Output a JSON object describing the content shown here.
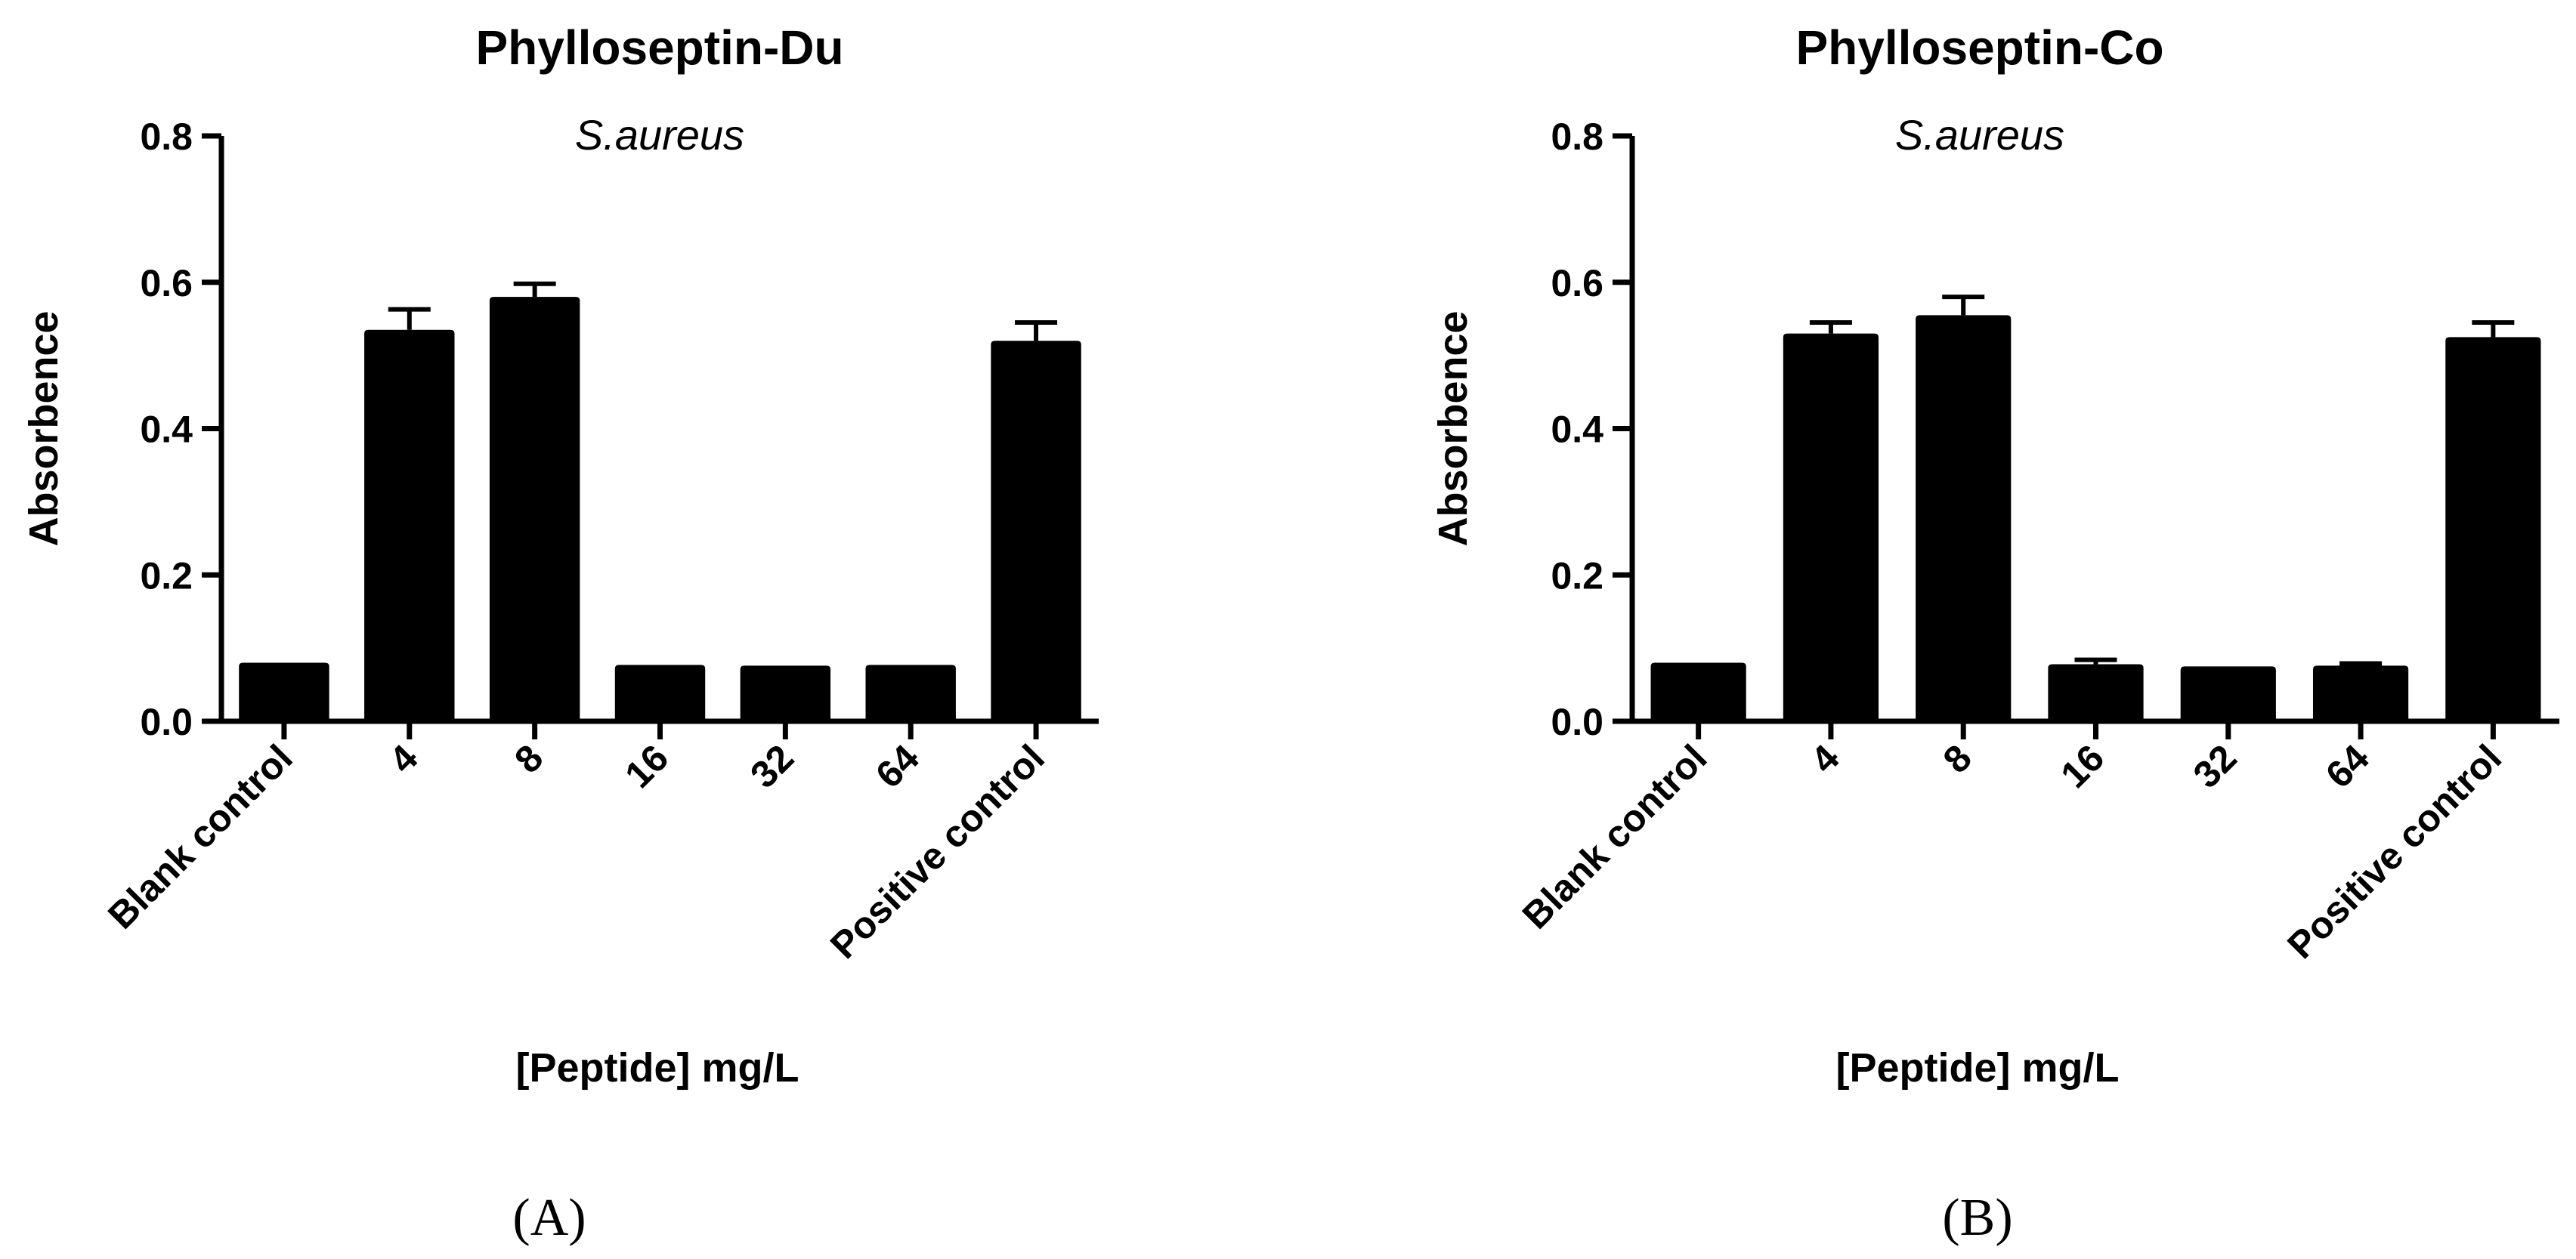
{
  "chart_data": [
    {
      "type": "bar",
      "title": "Phylloseptin-Du",
      "subtitle": "S.aureus",
      "xlabel": "[Peptide] mg/L",
      "ylabel": "Absorbence",
      "ylim": [
        0,
        0.8
      ],
      "yticks": [
        "0.0",
        "0.2",
        "0.4",
        "0.6",
        "0.8"
      ],
      "categories": [
        "Blank control",
        "4",
        "8",
        "16",
        "32",
        "64",
        "Positive control"
      ],
      "values": [
        0.08,
        0.535,
        0.58,
        0.077,
        0.076,
        0.077,
        0.52
      ],
      "errors": [
        0.002,
        0.028,
        0.018,
        0.002,
        0.002,
        0.002,
        0.025
      ],
      "panel_label": "(A)"
    },
    {
      "type": "bar",
      "title": "Phylloseptin-Co",
      "subtitle": "S.aureus",
      "xlabel": "[Peptide] mg/L",
      "ylabel": "Absorbence",
      "ylim": [
        0,
        0.8
      ],
      "yticks": [
        "0.0",
        "0.2",
        "0.4",
        "0.6",
        "0.8"
      ],
      "categories": [
        "Blank control",
        "4",
        "8",
        "16",
        "32",
        "64",
        "Positive control"
      ],
      "values": [
        0.08,
        0.53,
        0.555,
        0.078,
        0.075,
        0.076,
        0.525
      ],
      "errors": [
        0.002,
        0.015,
        0.025,
        0.006,
        0.002,
        0.003,
        0.02
      ],
      "panel_label": "(B)"
    }
  ]
}
